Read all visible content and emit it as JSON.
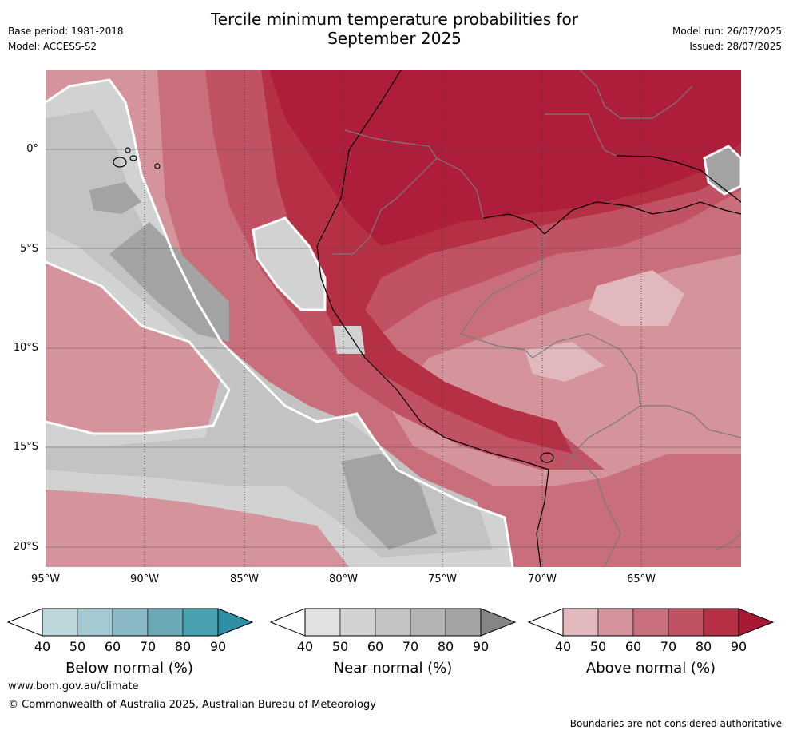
{
  "title_line1": "Tercile minimum temperature probabilities for",
  "title_line2": "September 2025",
  "base_period": "Base period: 1981-2018",
  "model": "Model: ACCESS-S2",
  "model_run": "Model run: 26/07/2025",
  "issued": "Issued: 28/07/2025",
  "lat_labels": [
    "0°",
    "5°S",
    "10°S",
    "15°S",
    "20°S"
  ],
  "lon_labels": [
    "95°W",
    "90°W",
    "85°W",
    "80°W",
    "75°W",
    "70°W",
    "65°W"
  ],
  "colorbars": [
    {
      "title": "Below normal (%)",
      "ticks": [
        "40",
        "50",
        "60",
        "70",
        "80",
        "90"
      ],
      "colors": [
        "#bcd6db",
        "#a5c9d0",
        "#89b9c4",
        "#6aa8b6",
        "#48a0b1",
        "#2e8fa5"
      ]
    },
    {
      "title": "Near normal (%)",
      "ticks": [
        "40",
        "50",
        "60",
        "70",
        "80",
        "90"
      ],
      "colors": [
        "#e1e1e1",
        "#d2d2d2",
        "#c3c3c3",
        "#b3b3b3",
        "#a3a3a3",
        "#858585"
      ]
    },
    {
      "title": "Above normal (%)",
      "ticks": [
        "40",
        "50",
        "60",
        "70",
        "80",
        "90"
      ],
      "colors": [
        "#e0b8bd",
        "#d5939b",
        "#c96f7b",
        "#c05263",
        "#b52f45",
        "#a91936"
      ]
    }
  ],
  "footer_url": "www.bom.gov.au/climate",
  "footer_copyright": "© Commonwealth of Australia 2025, Australian Bureau of Meteorology",
  "footer_note": "Boundaries are not considered authoritative"
}
